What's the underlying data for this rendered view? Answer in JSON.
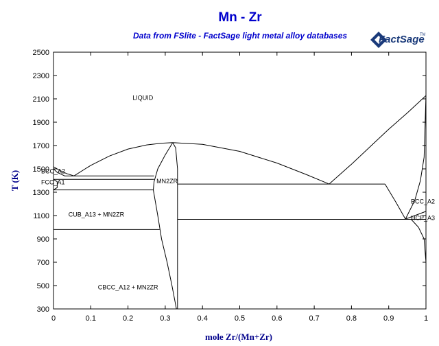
{
  "header": {
    "title": "Mn - Zr",
    "subtitle": "Data from FSlite - FactSage light metal alloy databases",
    "logo_text": "FactSage",
    "logo_mark": "TM"
  },
  "colors": {
    "title": "#0000cc",
    "axis_label": "#00008b",
    "lines": "#000000"
  },
  "chart_data": {
    "type": "phase_diagram",
    "title": "Mn - Zr",
    "xlabel": "mole Zr/(Mn+Zr)",
    "ylabel": "T (K)",
    "xlim": [
      0,
      1
    ],
    "ylim": [
      300,
      2500
    ],
    "x_ticks": [
      "0",
      "0.1",
      "0.2",
      "0.3",
      "0.4",
      "0.5",
      "0.6",
      "0.7",
      "0.8",
      "0.9",
      "1"
    ],
    "y_ticks": [
      "300",
      "500",
      "700",
      "900",
      "1100",
      "1300",
      "1500",
      "1700",
      "1900",
      "2100",
      "2300",
      "2500"
    ],
    "grid": false,
    "phase_labels": [
      {
        "text": "LIQUID",
        "x": 0.24,
        "y": 2110
      },
      {
        "text": "BCC_A2",
        "x": 0.0,
        "y": 1480
      },
      {
        "text": "FCC_A1",
        "x": 0.0,
        "y": 1385
      },
      {
        "text": "MN2ZR",
        "x": 0.305,
        "y": 1395
      },
      {
        "text": "CUB_A13 + MN2ZR",
        "x": 0.115,
        "y": 1110
      },
      {
        "text": "CBCC_A12 + MN2ZR",
        "x": 0.2,
        "y": 485
      },
      {
        "text": "BCC_A2",
        "x": 0.97,
        "y": 1220
      },
      {
        "text": "HCP_A3",
        "x": 0.98,
        "y": 1080
      }
    ],
    "boundaries": [
      {
        "name": "liquidus-mn-side",
        "points": [
          [
            0.0,
            1519
          ],
          [
            0.015,
            1490
          ],
          [
            0.035,
            1460
          ],
          [
            0.055,
            1440
          ]
        ]
      },
      {
        "name": "liquidus-left",
        "points": [
          [
            0.055,
            1440
          ],
          [
            0.1,
            1530
          ],
          [
            0.15,
            1610
          ],
          [
            0.2,
            1670
          ],
          [
            0.25,
            1705
          ],
          [
            0.29,
            1720
          ],
          [
            0.32,
            1725
          ]
        ]
      },
      {
        "name": "liquidus-right",
        "points": [
          [
            0.32,
            1725
          ],
          [
            0.4,
            1710
          ],
          [
            0.5,
            1650
          ],
          [
            0.6,
            1550
          ],
          [
            0.68,
            1450
          ],
          [
            0.74,
            1370
          ]
        ]
      },
      {
        "name": "liquidus-zr-side",
        "points": [
          [
            0.74,
            1370
          ],
          [
            0.8,
            1540
          ],
          [
            0.85,
            1690
          ],
          [
            0.9,
            1840
          ],
          [
            0.95,
            1980
          ],
          [
            1.0,
            2128
          ]
        ]
      },
      {
        "name": "mn2zr-left-upper",
        "points": [
          [
            0.32,
            1725
          ],
          [
            0.3,
            1620
          ],
          [
            0.28,
            1500
          ],
          [
            0.27,
            1390
          ],
          [
            0.268,
            1320
          ]
        ]
      },
      {
        "name": "mn2zr-left-lower",
        "points": [
          [
            0.268,
            1320
          ],
          [
            0.28,
            1100
          ],
          [
            0.29,
            900
          ],
          [
            0.305,
            700
          ],
          [
            0.318,
            500
          ],
          [
            0.33,
            300
          ]
        ]
      },
      {
        "name": "mn2zr-right",
        "points": [
          [
            0.32,
            1725
          ],
          [
            0.328,
            1680
          ],
          [
            0.333,
            1500
          ],
          [
            0.333,
            1000
          ],
          [
            0.333,
            300
          ]
        ]
      },
      {
        "name": "bcc-zr-solvus",
        "points": [
          [
            0.945,
            1070
          ],
          [
            0.97,
            1230
          ],
          [
            0.985,
            1400
          ],
          [
            0.995,
            1600
          ],
          [
            1.0,
            2128
          ]
        ]
      },
      {
        "name": "bcc-hcp-boundary",
        "points": [
          [
            0.89,
            1370
          ],
          [
            0.92,
            1210
          ],
          [
            0.945,
            1070
          ],
          [
            0.97,
            1100
          ],
          [
            1.0,
            1136
          ]
        ]
      },
      {
        "name": "hcp-solvus",
        "points": [
          [
            0.96,
            1068
          ],
          [
            0.98,
            1000
          ],
          [
            0.995,
            900
          ],
          [
            1.0,
            700
          ]
        ]
      },
      {
        "name": "mn-bcc-fcc",
        "points": [
          [
            0.0,
            1500
          ],
          [
            0.01,
            1470
          ],
          [
            0.03,
            1440
          ],
          [
            0.055,
            1440
          ]
        ]
      },
      {
        "name": "mn-fcc-loop",
        "points": [
          [
            0.0,
            1410
          ],
          [
            0.01,
            1390
          ],
          [
            0.01,
            1340
          ],
          [
            0.0,
            1320
          ]
        ]
      }
    ],
    "isotherms": [
      {
        "name": "isotherm-1440",
        "x": [
          0.055,
          0.27
        ],
        "y": 1440
      },
      {
        "name": "isotherm-1410",
        "x": [
          0.0,
          0.27
        ],
        "y": 1410
      },
      {
        "name": "isotherm-1370",
        "x": [
          0.333,
          0.89
        ],
        "y": 1370
      },
      {
        "name": "isotherm-1320",
        "x": [
          0.0,
          0.268
        ],
        "y": 1320
      },
      {
        "name": "isotherm-1068",
        "x": [
          0.333,
          1.0
        ],
        "y": 1068
      },
      {
        "name": "isotherm-980",
        "x": [
          0.0,
          0.285
        ],
        "y": 980
      }
    ]
  }
}
